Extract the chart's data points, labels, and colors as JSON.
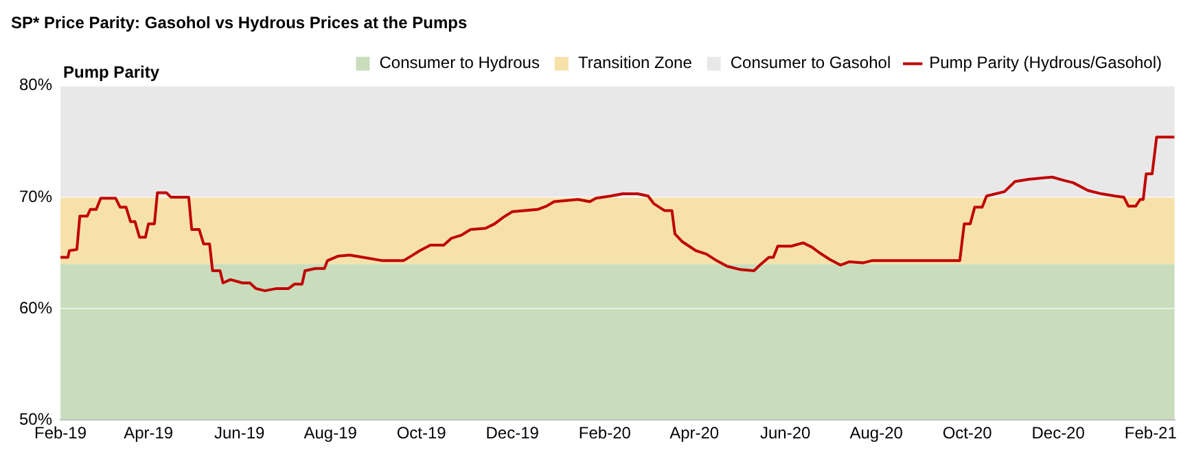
{
  "chart_data": {
    "type": "line",
    "title": "SP* Price Parity: Gasohol vs Hydrous Prices at the Pumps",
    "ylabel": "Pump Parity",
    "x": [
      "2019-02-01",
      "2019-02-06",
      "2019-02-07",
      "2019-02-12",
      "2019-02-14",
      "2019-02-19",
      "2019-02-21",
      "2019-02-25",
      "2019-02-28",
      "2019-03-10",
      "2019-03-13",
      "2019-03-17",
      "2019-03-20",
      "2019-03-23",
      "2019-03-26",
      "2019-03-30",
      "2019-04-01",
      "2019-04-05",
      "2019-04-07",
      "2019-04-13",
      "2019-04-16",
      "2019-04-28",
      "2019-04-30",
      "2019-05-05",
      "2019-05-08",
      "2019-05-12",
      "2019-05-14",
      "2019-05-19",
      "2019-05-21",
      "2019-05-26",
      "2019-06-03",
      "2019-06-08",
      "2019-06-12",
      "2019-06-18",
      "2019-06-26",
      "2019-07-04",
      "2019-07-08",
      "2019-07-13",
      "2019-07-15",
      "2019-07-22",
      "2019-07-28",
      "2019-07-30",
      "2019-08-06",
      "2019-08-14",
      "2019-08-23",
      "2019-09-05",
      "2019-09-19",
      "2019-09-24",
      "2019-09-30",
      "2019-10-07",
      "2019-10-16",
      "2019-10-21",
      "2019-10-28",
      "2019-11-03",
      "2019-11-13",
      "2019-11-19",
      "2019-11-25",
      "2019-12-01",
      "2019-12-18",
      "2019-12-24",
      "2019-12-29",
      "2020-01-14",
      "2020-01-22",
      "2020-01-26",
      "2020-02-05",
      "2020-02-13",
      "2020-02-23",
      "2020-03-01",
      "2020-03-05",
      "2020-03-12",
      "2020-03-17",
      "2020-03-19",
      "2020-03-24",
      "2020-04-02",
      "2020-04-09",
      "2020-04-16",
      "2020-04-23",
      "2020-05-02",
      "2020-05-11",
      "2020-05-15",
      "2020-05-21",
      "2020-05-24",
      "2020-05-27",
      "2020-06-05",
      "2020-06-13",
      "2020-06-19",
      "2020-06-24",
      "2020-07-01",
      "2020-07-08",
      "2020-07-14",
      "2020-07-23",
      "2020-07-29",
      "2020-09-26",
      "2020-09-29",
      "2020-10-03",
      "2020-10-06",
      "2020-10-11",
      "2020-10-14",
      "2020-10-26",
      "2020-11-02",
      "2020-11-11",
      "2020-11-27",
      "2020-12-05",
      "2020-12-11",
      "2020-12-21",
      "2020-12-30",
      "2021-01-08",
      "2021-01-14",
      "2021-01-17",
      "2021-01-22",
      "2021-01-25",
      "2021-01-27",
      "2021-01-29",
      "2021-02-02",
      "2021-02-05",
      "2021-02-17"
    ],
    "series": [
      {
        "name": "Pump Parity (Hydrous/Gasohol)",
        "color": "#c00000",
        "values": [
          64.6,
          64.6,
          65.2,
          65.3,
          68.3,
          68.3,
          68.9,
          68.9,
          69.9,
          69.9,
          69.1,
          69.1,
          67.8,
          67.8,
          66.4,
          66.4,
          67.6,
          67.6,
          70.4,
          70.4,
          70.0,
          70.0,
          67.1,
          67.1,
          65.8,
          65.8,
          63.4,
          63.4,
          62.3,
          62.6,
          62.3,
          62.3,
          61.8,
          61.6,
          61.8,
          61.8,
          62.2,
          62.2,
          63.4,
          63.6,
          63.6,
          64.3,
          64.7,
          64.8,
          64.6,
          64.3,
          64.3,
          64.7,
          65.2,
          65.7,
          65.7,
          66.3,
          66.6,
          67.1,
          67.2,
          67.6,
          68.2,
          68.7,
          68.9,
          69.2,
          69.6,
          69.8,
          69.6,
          69.9,
          70.1,
          70.3,
          70.3,
          70.1,
          69.4,
          68.8,
          68.8,
          66.7,
          66.0,
          65.2,
          64.9,
          64.3,
          63.8,
          63.5,
          63.4,
          63.9,
          64.6,
          64.6,
          65.6,
          65.6,
          65.9,
          65.5,
          65.0,
          64.4,
          63.9,
          64.2,
          64.1,
          64.3,
          64.3,
          67.6,
          67.6,
          69.1,
          69.1,
          70.1,
          70.5,
          71.4,
          71.6,
          71.8,
          71.5,
          71.3,
          70.6,
          70.3,
          70.1,
          70.0,
          69.2,
          69.2,
          69.8,
          69.8,
          72.1,
          72.1,
          75.4,
          75.4
        ]
      }
    ],
    "bands": [
      {
        "axis": "y",
        "from": 50,
        "to": 64,
        "label": "Consumer to Hydrous",
        "color": "#c9ddbd"
      },
      {
        "axis": "y",
        "from": 64,
        "to": 70,
        "label": "Transition Zone",
        "color": "#f6e2a9"
      },
      {
        "axis": "y",
        "from": 70,
        "to": 80,
        "label": "Consumer to Gasohol",
        "color": "#e8e8e8"
      }
    ],
    "xlim": [
      "2019-02-01",
      "2021-02-17"
    ],
    "xticks": [
      {
        "value": "2019-02-01",
        "label": "Feb-19"
      },
      {
        "value": "2019-04-01",
        "label": "Apr-19"
      },
      {
        "value": "2019-06-01",
        "label": "Jun-19"
      },
      {
        "value": "2019-08-01",
        "label": "Aug-19"
      },
      {
        "value": "2019-10-01",
        "label": "Oct-19"
      },
      {
        "value": "2019-12-01",
        "label": "Dec-19"
      },
      {
        "value": "2020-02-01",
        "label": "Feb-20"
      },
      {
        "value": "2020-04-01",
        "label": "Apr-20"
      },
      {
        "value": "2020-06-01",
        "label": "Jun-20"
      },
      {
        "value": "2020-08-01",
        "label": "Aug-20"
      },
      {
        "value": "2020-10-01",
        "label": "Oct-20"
      },
      {
        "value": "2020-12-01",
        "label": "Dec-20"
      },
      {
        "value": "2021-02-01",
        "label": "Feb-21"
      }
    ],
    "ylim": [
      50,
      80
    ],
    "yticks": [
      {
        "value": 50,
        "label": "50%"
      },
      {
        "value": 60,
        "label": "60%"
      },
      {
        "value": 70,
        "label": "70%"
      },
      {
        "value": 80,
        "label": "80%"
      }
    ],
    "grid": "y",
    "legend": "top right",
    "marker": "none",
    "line_style": "solid"
  }
}
